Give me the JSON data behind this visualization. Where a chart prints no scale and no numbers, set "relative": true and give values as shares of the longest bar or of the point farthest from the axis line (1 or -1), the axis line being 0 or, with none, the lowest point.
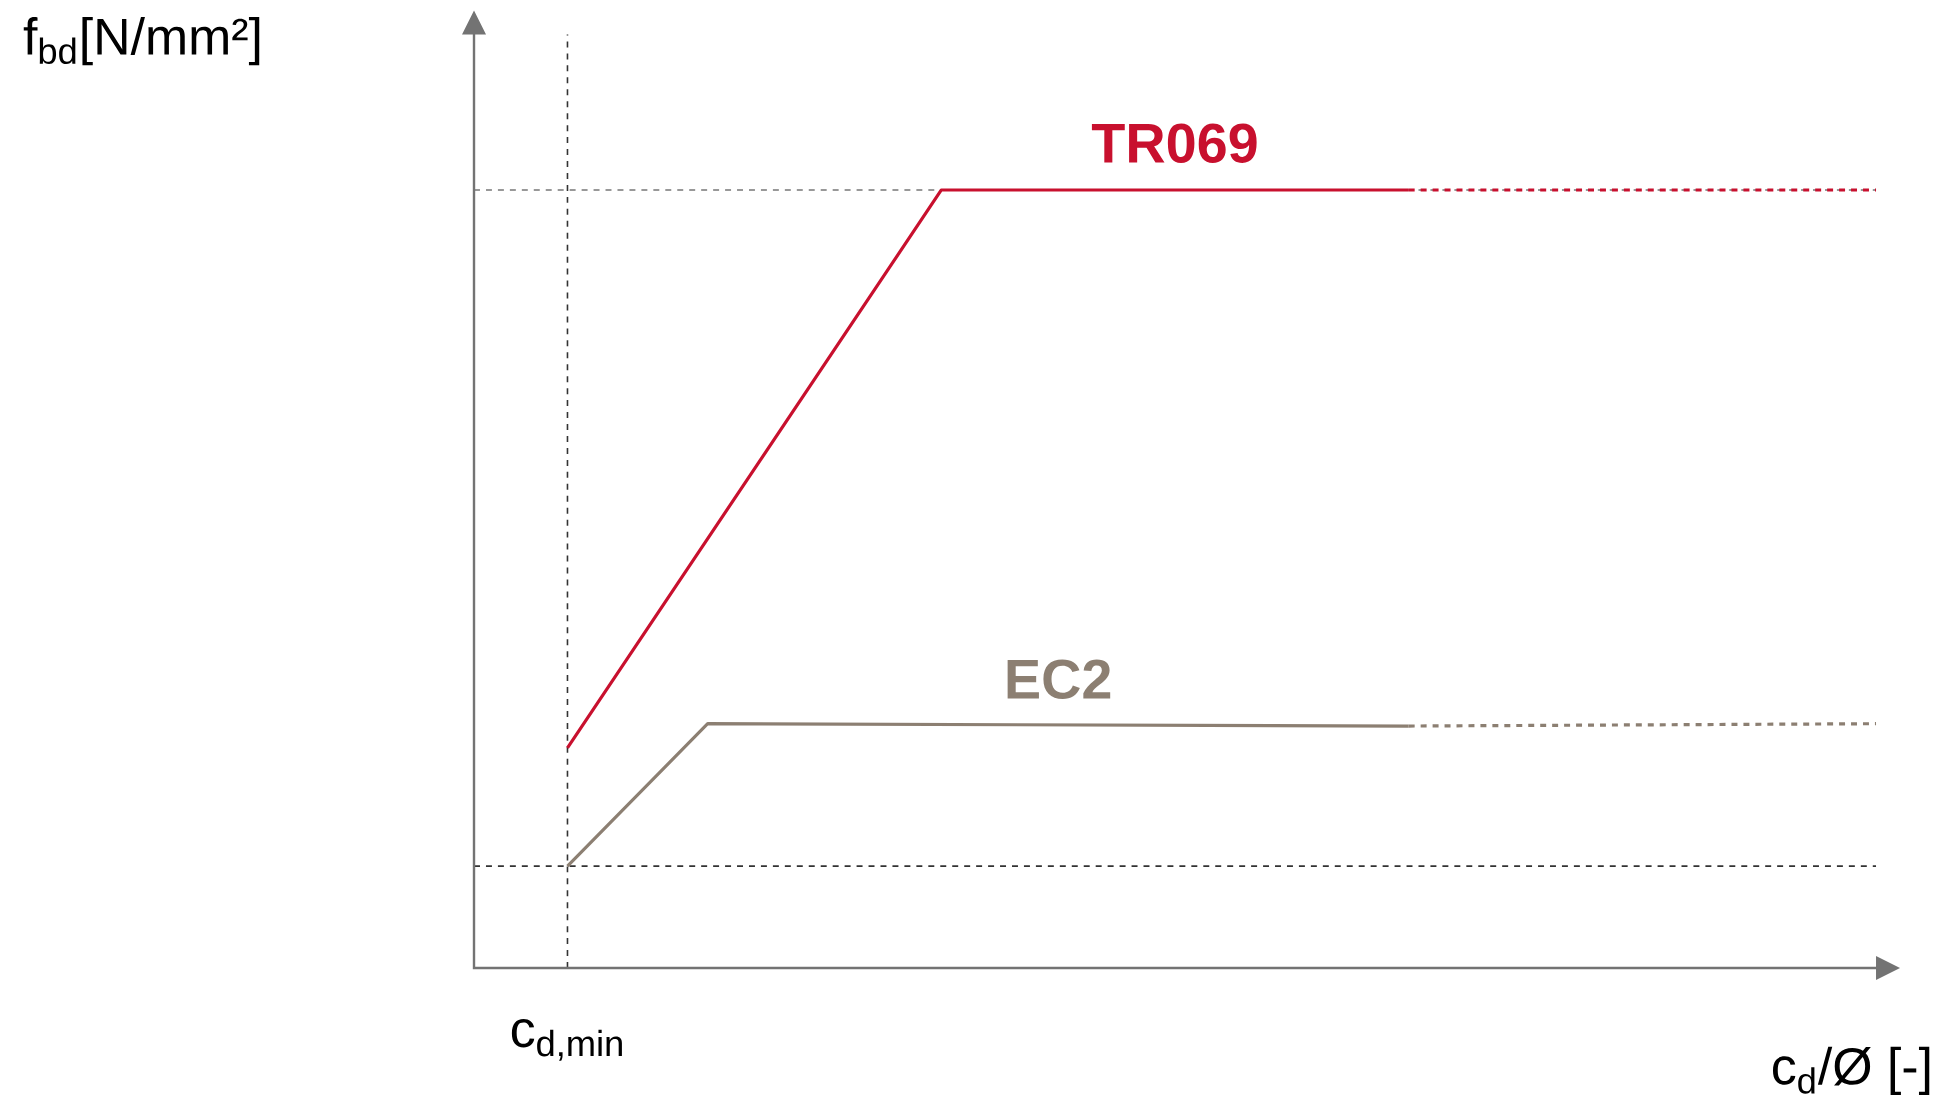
{
  "chart_data": {
    "type": "line",
    "relative": true,
    "xlabel": "c$_{d}$/Ø [-]",
    "ylabel": "f$_{bd}$[N/mm²]",
    "legend": false,
    "marker": "none",
    "line_style": "solid",
    "annotations": [
      "c$_{d,min}$"
    ],
    "categories": [
      null,
      null,
      null,
      null,
      null,
      null,
      null,
      null,
      null,
      null,
      null,
      null,
      null,
      null,
      null,
      null,
      null,
      null,
      null,
      null,
      null,
      null,
      null,
      null,
      null,
      null,
      null,
      null,
      null,
      null,
      null
    ],
    "series": [
      {
        "name": "TR069",
        "color": "#c8102e",
        "values": [
          null,
          null,
          0.283,
          null,
          null,
          null,
          null,
          null,
          null,
          null,
          1,
          null,
          null,
          null,
          null,
          null,
          null,
          null,
          null,
          null,
          1,
          null,
          null,
          null,
          null,
          null,
          null,
          null,
          null,
          null,
          null
        ]
      },
      {
        "color": "#c8102e",
        "line_style": "dashed",
        "values": [
          null,
          null,
          null,
          null,
          null,
          null,
          null,
          null,
          null,
          null,
          null,
          null,
          null,
          null,
          null,
          null,
          null,
          null,
          null,
          null,
          1,
          null,
          null,
          null,
          null,
          null,
          null,
          null,
          null,
          null,
          1
        ]
      },
      {
        "name": "EC2",
        "color": "#8c7f72",
        "values": [
          null,
          null,
          0.131,
          null,
          null,
          0.314,
          null,
          null,
          null,
          null,
          null,
          null,
          null,
          null,
          null,
          null,
          null,
          null,
          null,
          null,
          0.311,
          null,
          null,
          null,
          null,
          null,
          null,
          null,
          null,
          null,
          null
        ]
      },
      {
        "color": "#8c7f72",
        "line_style": "dashed",
        "values": [
          null,
          null,
          null,
          null,
          null,
          null,
          null,
          null,
          null,
          null,
          null,
          null,
          null,
          null,
          null,
          null,
          null,
          null,
          null,
          null,
          0.311,
          null,
          null,
          null,
          null,
          null,
          null,
          null,
          null,
          null,
          0.314
        ]
      }
    ],
    "ref_lines": [
      {
        "axis": "y",
        "value": 1,
        "color": "#777777",
        "line_style": "dashed"
      },
      {
        "axis": "y",
        "value": 0.131,
        "color": "#333333",
        "line_style": "dashed"
      }
    ]
  }
}
